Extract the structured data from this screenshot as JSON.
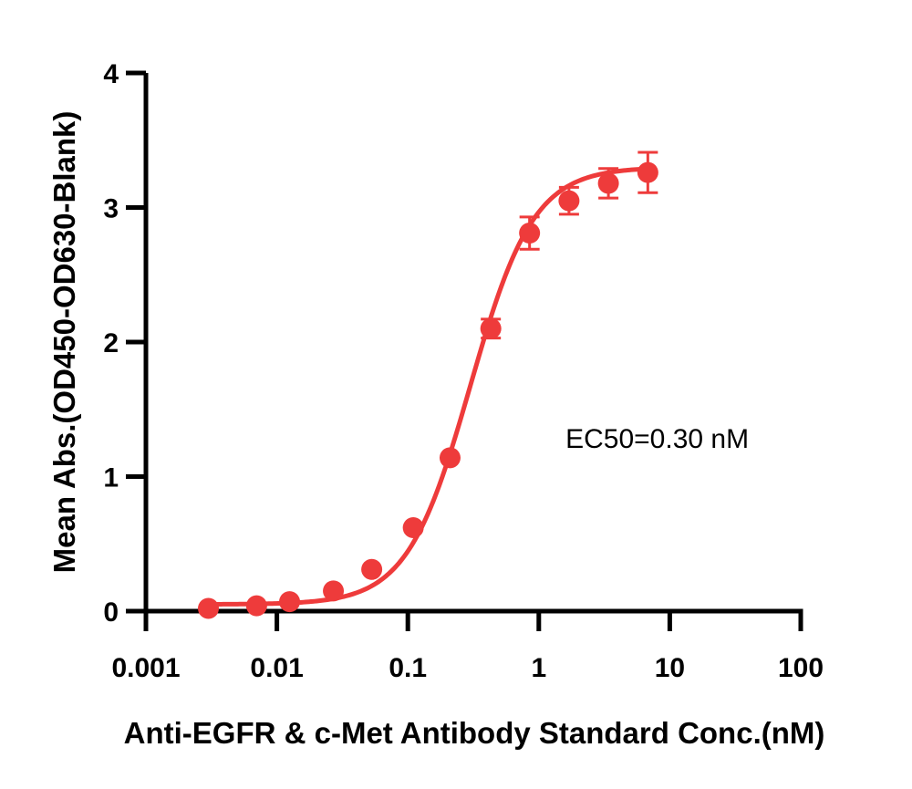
{
  "chart_data": {
    "type": "scatter",
    "title": "",
    "xlabel": "Anti-EGFR & c-Met Antibody Standard Conc.(nM)",
    "ylabel": "Mean Abs.(OD450-OD630-Blank)",
    "x_scale": "log",
    "xlim": [
      0.001,
      100
    ],
    "ylim": [
      0,
      4
    ],
    "x_ticks": [
      0.001,
      0.01,
      0.1,
      1,
      10,
      100
    ],
    "x_tick_labels": [
      "0.001",
      "0.01",
      "0.1",
      "1",
      "10",
      "100"
    ],
    "y_ticks": [
      0,
      1,
      2,
      3,
      4
    ],
    "y_tick_labels": [
      "0",
      "1",
      "2",
      "3",
      "4"
    ],
    "grid": false,
    "color": "#EE3B3B",
    "series": [
      {
        "x": [
          0.003,
          0.007,
          0.0125,
          0.027,
          0.053,
          0.11,
          0.21,
          0.43,
          0.85,
          1.7,
          3.4,
          6.8
        ],
        "y": [
          0.02,
          0.04,
          0.07,
          0.15,
          0.31,
          0.62,
          1.14,
          2.1,
          2.81,
          3.05,
          3.18,
          3.26
        ],
        "error": [
          0.0,
          0.0,
          0.0,
          0.0,
          0.0,
          0.0,
          0.0,
          0.07,
          0.12,
          0.1,
          0.11,
          0.15
        ]
      }
    ],
    "fit": {
      "model": "4PL",
      "bottom": 0.05,
      "top": 3.3,
      "ec50": 0.3,
      "hill": 1.8,
      "x_range": [
        0.003,
        6.8
      ]
    },
    "annotations": [
      {
        "text": "EC50=0.30 nM",
        "x": 1.6,
        "y": 1.28
      }
    ]
  }
}
